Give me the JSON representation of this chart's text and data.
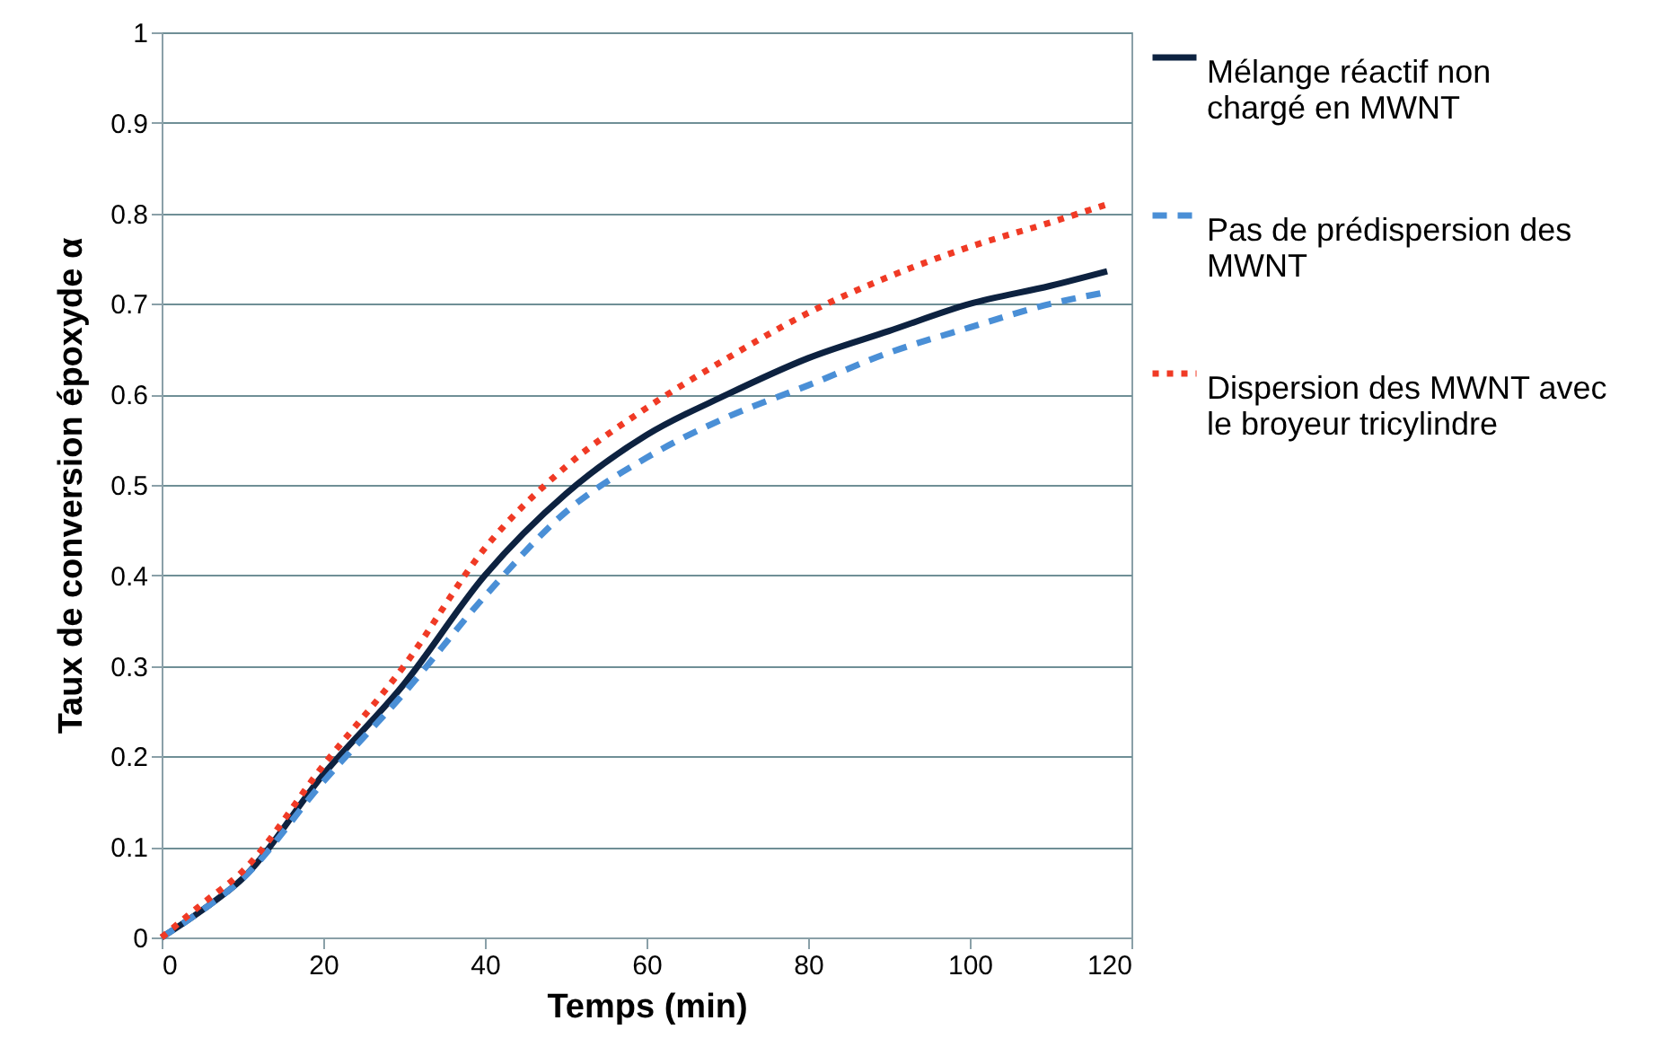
{
  "chart_data": {
    "type": "line",
    "xlabel": "Temps (min)",
    "ylabel": "Taux de conversion époxyde α",
    "xlim": [
      0,
      120
    ],
    "xticks": [
      0,
      20,
      40,
      60,
      80,
      100,
      120
    ],
    "ylim": [
      0,
      1
    ],
    "yticks": [
      0,
      0.1,
      0.2,
      0.3,
      0.4,
      0.5,
      0.6,
      0.7,
      0.8,
      0.9,
      1
    ],
    "grid": "y",
    "legend": "right",
    "x": [
      0,
      5,
      10,
      20,
      30,
      40,
      50,
      60,
      70,
      80,
      90,
      100,
      110,
      117
    ],
    "series": [
      {
        "name": "Mélange réactif non chargé en MWNT",
        "color": "#0d2240",
        "line_style": "solid",
        "values": [
          0,
          0.03,
          0.065,
          0.18,
          0.28,
          0.4,
          0.49,
          0.555,
          0.6,
          0.64,
          0.67,
          0.7,
          0.72,
          0.736
        ]
      },
      {
        "name": "Pas de prédispersion des MWNT",
        "color": "#4a8fd6",
        "line_style": "dashed",
        "values": [
          0,
          0.03,
          0.065,
          0.172,
          0.27,
          0.377,
          0.47,
          0.53,
          0.575,
          0.61,
          0.646,
          0.674,
          0.7,
          0.713
        ]
      },
      {
        "name": "Dispersion des MWNT avec le broyeur tricylindre",
        "color": "#f03a25",
        "line_style": "dotted",
        "values": [
          0,
          0.037,
          0.073,
          0.19,
          0.3,
          0.43,
          0.52,
          0.585,
          0.64,
          0.69,
          0.73,
          0.763,
          0.79,
          0.81
        ]
      }
    ]
  }
}
